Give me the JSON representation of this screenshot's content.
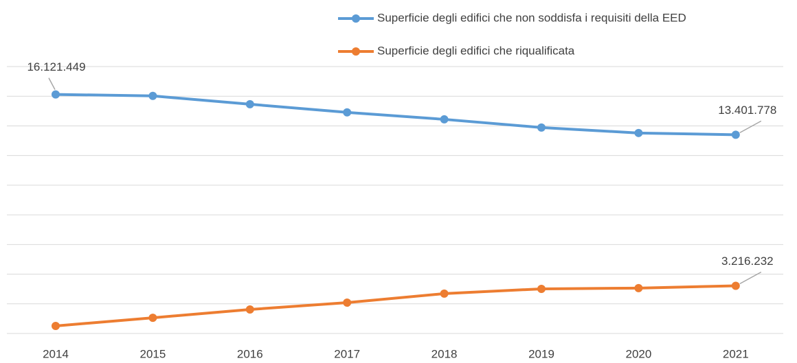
{
  "chart_data": {
    "type": "line",
    "categories": [
      "2014",
      "2015",
      "2016",
      "2017",
      "2018",
      "2019",
      "2020",
      "2021"
    ],
    "series": [
      {
        "name": "Superficie degli edifici che non soddisfa i requisiti della EED",
        "color": "#5b9bd5",
        "values": [
          16121449,
          16020000,
          15460000,
          14910000,
          14440000,
          13890000,
          13520000,
          13401778
        ],
        "value_labels": [
          "16.121.449",
          null,
          null,
          null,
          null,
          null,
          null,
          "13.401.778"
        ]
      },
      {
        "name": "Superficie degli edifici che riqualificata",
        "color": "#ed7d31",
        "values": [
          510000,
          1060000,
          1620000,
          2080000,
          2690000,
          3010000,
          3060000,
          3216232
        ],
        "value_labels": [
          null,
          null,
          null,
          null,
          null,
          null,
          null,
          "3.216.232"
        ]
      }
    ],
    "ylim": [
      0,
      18000000
    ],
    "yticks": [
      0,
      2000000,
      4000000,
      6000000,
      8000000,
      10000000,
      12000000,
      14000000,
      16000000,
      18000000
    ],
    "grid": true
  }
}
